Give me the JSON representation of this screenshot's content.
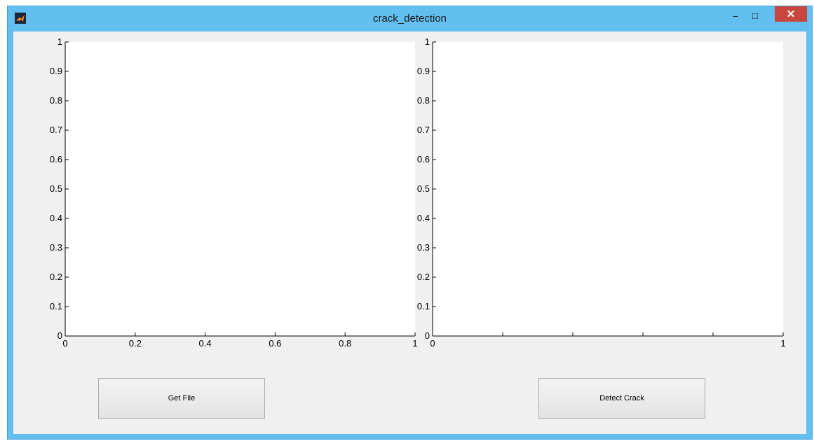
{
  "window": {
    "title": "crack_detection",
    "controls": {
      "minimize": "–",
      "maximize": "□",
      "close": "✕"
    },
    "icon": "matlab-logo-icon",
    "colors": {
      "titlebar": "#62bff0",
      "close": "#c7463d",
      "client": "#f0f0f0"
    }
  },
  "axes_left": {
    "yticks": [
      "0",
      "0.1",
      "0.2",
      "0.3",
      "0.4",
      "0.5",
      "0.6",
      "0.7",
      "0.8",
      "0.9",
      "1"
    ],
    "xticks": [
      "0",
      "0.2",
      "0.4",
      "0.6",
      "0.8",
      "1"
    ]
  },
  "axes_right": {
    "yticks": [
      "0",
      "0.1",
      "0.2",
      "0.3",
      "0.4",
      "0.5",
      "0.6",
      "0.7",
      "0.8",
      "0.9",
      "1"
    ],
    "xticks": [
      "0",
      "1"
    ]
  },
  "buttons": {
    "get_file": "Get File",
    "detect_crack": "Detect Crack"
  },
  "chart_data": [
    {
      "type": "line",
      "title": "",
      "xlabel": "",
      "ylabel": "",
      "xlim": [
        0,
        1
      ],
      "ylim": [
        0,
        1
      ],
      "series": []
    },
    {
      "type": "line",
      "title": "",
      "xlabel": "",
      "ylabel": "",
      "xlim": [
        0,
        1
      ],
      "ylim": [
        0,
        1
      ],
      "series": []
    }
  ]
}
